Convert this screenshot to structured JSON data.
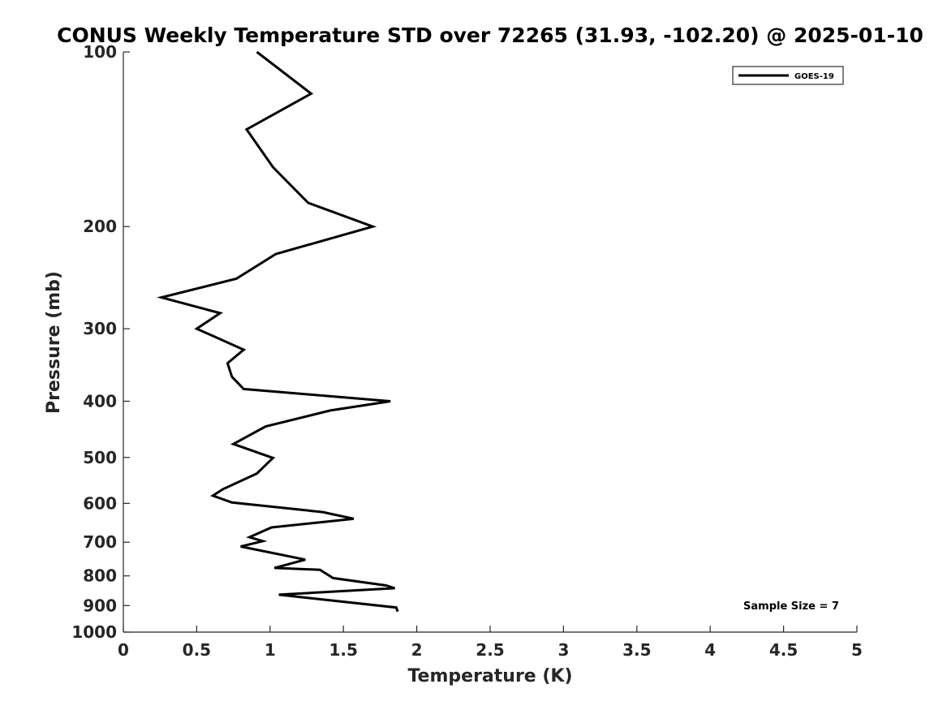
{
  "chart_data": {
    "type": "line",
    "title": "CONUS Weekly Temperature STD over 72265 (31.93, -102.20) @ 2025-01-10",
    "xlabel": "Temperature (K)",
    "ylabel": "Pressure (mb)",
    "xlim": [
      0,
      5
    ],
    "ylim": [
      1000,
      100
    ],
    "yscale": "log",
    "y_reversed": true,
    "x_ticks": [
      "0",
      "0.5",
      "1",
      "1.5",
      "2",
      "2.5",
      "3",
      "3.5",
      "4",
      "4.5",
      "5"
    ],
    "y_ticks": [
      "100",
      "200",
      "300",
      "400",
      "500",
      "600",
      "700",
      "800",
      "900",
      "1000"
    ],
    "grid": false,
    "legend_position": "top-right",
    "annotation": "Sample Size = 7",
    "line_color": "#000000",
    "series": [
      {
        "name": "GOES-19",
        "points": [
          [
            0.91,
            100
          ],
          [
            1.28,
            118
          ],
          [
            0.84,
            136
          ],
          [
            1.02,
            158
          ],
          [
            1.26,
            182
          ],
          [
            1.7,
            200
          ],
          [
            1.04,
            223
          ],
          [
            0.77,
            246
          ],
          [
            0.26,
            265
          ],
          [
            0.66,
            282
          ],
          [
            0.5,
            300
          ],
          [
            0.82,
            326
          ],
          [
            0.71,
            344
          ],
          [
            0.74,
            363
          ],
          [
            0.82,
            381
          ],
          [
            1.82,
            400
          ],
          [
            1.41,
            415
          ],
          [
            0.97,
            442
          ],
          [
            0.75,
            474
          ],
          [
            1.02,
            501
          ],
          [
            0.91,
            533
          ],
          [
            0.68,
            567
          ],
          [
            0.61,
            582
          ],
          [
            0.74,
            598
          ],
          [
            1.36,
            621
          ],
          [
            1.57,
            638
          ],
          [
            1.01,
            660
          ],
          [
            0.86,
            686
          ],
          [
            0.95,
            697
          ],
          [
            0.8,
            712
          ],
          [
            1.24,
            750
          ],
          [
            1.03,
            775
          ],
          [
            1.34,
            781
          ],
          [
            1.43,
            807
          ],
          [
            1.79,
            831
          ],
          [
            1.85,
            840
          ],
          [
            1.06,
            862
          ],
          [
            1.86,
            907
          ],
          [
            1.87,
            922
          ]
        ]
      }
    ]
  }
}
